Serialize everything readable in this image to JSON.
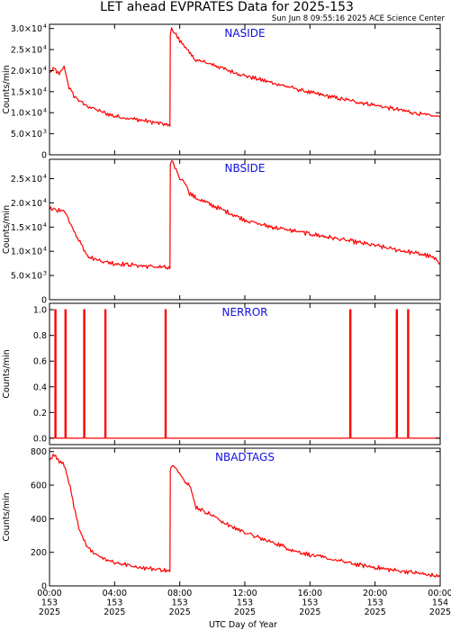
{
  "title": "LET ahead EVPRATES Data for 2025-153",
  "timestamp": "Sun Jun  8 09:55:16 2025 ACE Science Center",
  "xlabel": "UTC Day of Year",
  "colors": {
    "series": "#ff0000",
    "panel_label": "#1010e0",
    "axes": "#000000"
  },
  "chart_data": [
    {
      "type": "line",
      "panel": "NASIDE",
      "ylabel": "Counts/min",
      "ylim": [
        0,
        31000
      ],
      "yticks": [
        {
          "v": 0,
          "m": "0",
          "e": ""
        },
        {
          "v": 5000,
          "m": "5.0×10",
          "e": "3"
        },
        {
          "v": 10000,
          "m": "1.0×10",
          "e": "4"
        },
        {
          "v": 15000,
          "m": "1.5×10",
          "e": "4"
        },
        {
          "v": 20000,
          "m": "2.0×10",
          "e": "4"
        },
        {
          "v": 25000,
          "m": "2.5×10",
          "e": "4"
        },
        {
          "v": 30000,
          "m": "3.0×10",
          "e": "4"
        }
      ],
      "x": [
        0,
        0.3,
        0.6,
        0.9,
        1.2,
        1.5,
        1.8,
        2.1,
        2.4,
        2.7,
        3.0,
        3.5,
        4.0,
        5.0,
        6.0,
        7.0,
        7.4,
        7.42,
        7.5,
        7.7,
        8.0,
        8.3,
        8.6,
        9.0,
        10.0,
        11.0,
        12.0,
        13.0,
        14.0,
        15.0,
        16.0,
        17.0,
        18.0,
        19.0,
        20.0,
        21.0,
        22.0,
        23.0,
        24.0
      ],
      "values": [
        19500,
        20500,
        19000,
        21000,
        16000,
        14000,
        13000,
        12000,
        11500,
        11000,
        10500,
        9800,
        9200,
        8600,
        8000,
        7300,
        6800,
        29000,
        30000,
        29000,
        27000,
        26000,
        24000,
        22500,
        21500,
        20000,
        18800,
        17800,
        16800,
        15800,
        14800,
        14000,
        13200,
        12500,
        11800,
        11000,
        10300,
        9500,
        9000
      ]
    },
    {
      "type": "line",
      "panel": "NBSIDE",
      "ylabel": "Counts/min",
      "ylim": [
        0,
        29000
      ],
      "yticks": [
        {
          "v": 0,
          "m": "0",
          "e": ""
        },
        {
          "v": 5000,
          "m": "5.0×10",
          "e": "3"
        },
        {
          "v": 10000,
          "m": "1.0×10",
          "e": "4"
        },
        {
          "v": 15000,
          "m": "1.5×10",
          "e": "4"
        },
        {
          "v": 20000,
          "m": "2.0×10",
          "e": "4"
        },
        {
          "v": 25000,
          "m": "2.5×10",
          "e": "4"
        }
      ],
      "x": [
        0,
        0.5,
        1.0,
        1.2,
        1.5,
        1.8,
        2.1,
        2.4,
        2.7,
        3.0,
        3.5,
        4.0,
        5.0,
        6.0,
        7.0,
        7.4,
        7.42,
        7.5,
        7.7,
        8.0,
        8.3,
        8.6,
        9.0,
        10.0,
        11.0,
        12.0,
        13.0,
        14.0,
        15.0,
        16.0,
        17.0,
        18.0,
        19.0,
        20.0,
        21.0,
        22.0,
        23.0,
        23.5,
        24.0
      ],
      "values": [
        19000,
        18500,
        18000,
        16500,
        14000,
        12500,
        10500,
        9000,
        8500,
        8200,
        7800,
        7500,
        7200,
        6900,
        6700,
        6400,
        28000,
        28500,
        27500,
        25000,
        24500,
        22000,
        21000,
        19500,
        18000,
        16500,
        15500,
        14800,
        14200,
        13600,
        13000,
        12400,
        11800,
        11200,
        10500,
        9900,
        9300,
        8800,
        7500
      ]
    },
    {
      "type": "line",
      "panel": "NERROR",
      "ylabel": "Counts/min",
      "ylim": [
        -0.05,
        1.05
      ],
      "yticks": [
        {
          "v": 0.0,
          "m": "0.0",
          "e": ""
        },
        {
          "v": 0.2,
          "m": "0.2",
          "e": ""
        },
        {
          "v": 0.4,
          "m": "0.4",
          "e": ""
        },
        {
          "v": 0.6,
          "m": "0.6",
          "e": ""
        },
        {
          "v": 0.8,
          "m": "0.8",
          "e": ""
        },
        {
          "v": 1.0,
          "m": "1.0",
          "e": ""
        }
      ],
      "spikes_x": [
        0.33,
        0.95,
        2.1,
        3.4,
        7.1,
        18.45,
        21.3,
        22.0
      ],
      "baseline": 0,
      "spike_value": 1
    },
    {
      "type": "line",
      "panel": "NBADTAGS",
      "ylabel": "Counts/min",
      "ylim": [
        0,
        820
      ],
      "yticks": [
        {
          "v": 0,
          "m": "0",
          "e": ""
        },
        {
          "v": 200,
          "m": "200",
          "e": ""
        },
        {
          "v": 400,
          "m": "400",
          "e": ""
        },
        {
          "v": 600,
          "m": "600",
          "e": ""
        },
        {
          "v": 800,
          "m": "800",
          "e": ""
        }
      ],
      "x": [
        0,
        0.3,
        0.6,
        0.9,
        1.2,
        1.5,
        1.8,
        2.1,
        2.4,
        2.7,
        3.0,
        3.5,
        4.0,
        5.0,
        6.0,
        7.0,
        7.4,
        7.42,
        7.6,
        7.9,
        8.2,
        8.6,
        9.0,
        10.0,
        11.0,
        12.0,
        13.0,
        14.0,
        15.0,
        16.0,
        17.0,
        18.0,
        19.0,
        20.0,
        21.0,
        22.0,
        23.0,
        24.0
      ],
      "values": [
        760,
        780,
        740,
        720,
        620,
        470,
        340,
        270,
        230,
        200,
        180,
        160,
        140,
        120,
        105,
        95,
        85,
        690,
        720,
        690,
        640,
        600,
        470,
        420,
        360,
        320,
        280,
        250,
        210,
        185,
        165,
        145,
        125,
        110,
        95,
        85,
        70,
        55
      ]
    }
  ],
  "xaxis": {
    "xlim": [
      0,
      24
    ],
    "ticks": [
      {
        "v": 0,
        "l1": "00:00",
        "l2": "153",
        "l3": "2025"
      },
      {
        "v": 4,
        "l1": "04:00",
        "l2": "153",
        "l3": "2025"
      },
      {
        "v": 8,
        "l1": "08:00",
        "l2": "153",
        "l3": "2025"
      },
      {
        "v": 12,
        "l1": "12:00",
        "l2": "153",
        "l3": "2025"
      },
      {
        "v": 16,
        "l1": "16:00",
        "l2": "153",
        "l3": "2025"
      },
      {
        "v": 20,
        "l1": "20:00",
        "l2": "153",
        "l3": "2025"
      },
      {
        "v": 24,
        "l1": "00:00",
        "l2": "154",
        "l3": "2025"
      }
    ]
  }
}
